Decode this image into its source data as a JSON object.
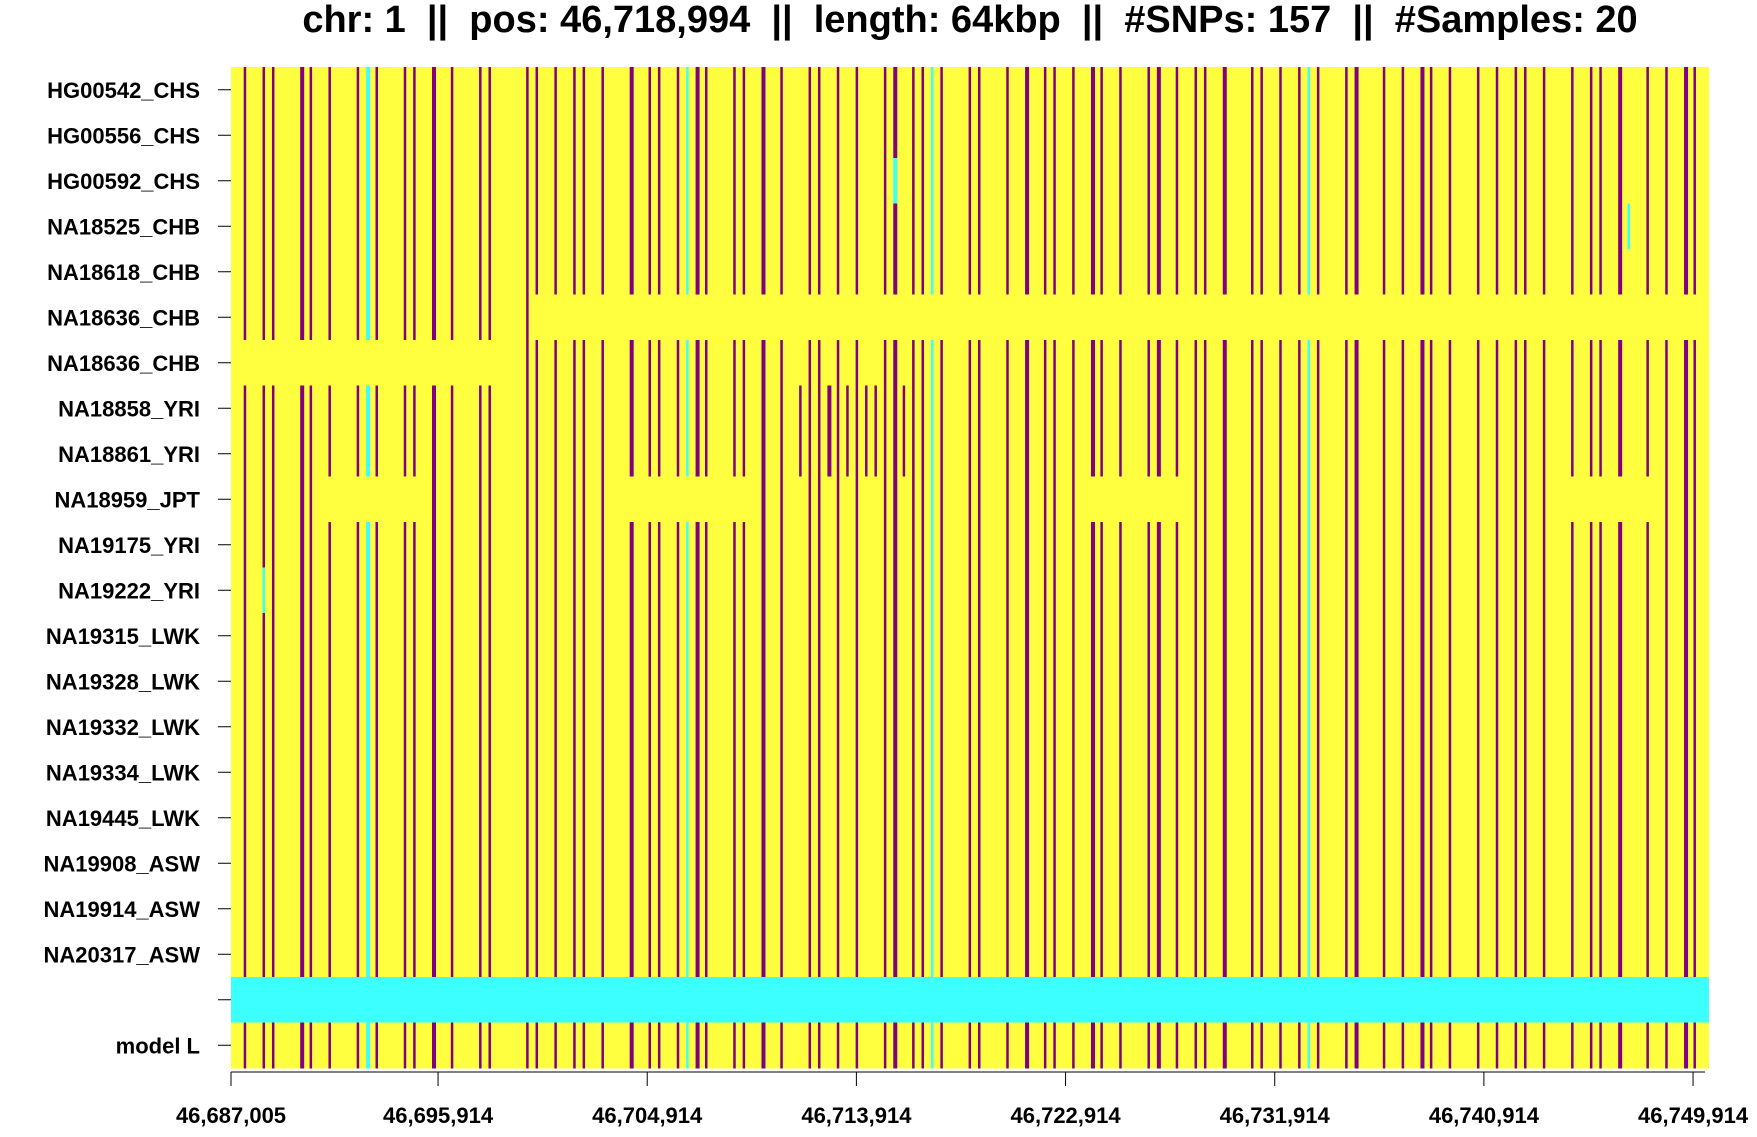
{
  "chart_data": {
    "type": "heatmap",
    "title": "chr: 1  ||  pos: 46,718,994  ||  length: 64kbp  ||  #SNPs: 157  ||  #Samples: 20",
    "xlabel": "",
    "ylabel": "",
    "xlim": [
      46687005,
      46750600
    ],
    "x_ticks": [
      46687005,
      46695914,
      46704914,
      46713914,
      46722914,
      46731914,
      46740914,
      46749914
    ],
    "x_tick_labels": [
      "46,687,005",
      "46,695,914",
      "46,704,914",
      "46,713,914",
      "46,722,914",
      "46,731,914",
      "46,740,914",
      "46,749,914"
    ],
    "colors": {
      "ref": "#FFFF40",
      "alt": "#800080",
      "other": "#3CFFFF"
    },
    "legend": "none",
    "base_pattern": "0101100110100121001101010011000110101101001011012110011010100110101001101121001100101011010110100110101101001101012100110010101101001010110100101101001010110",
    "rows": [
      {
        "label": "HG00542_CHS",
        "overrides": []
      },
      {
        "label": "HG00556_CHS",
        "overrides": []
      },
      {
        "label": "HG00592_CHS",
        "overrides": [
          [
            70,
            70,
            "2"
          ]
        ]
      },
      {
        "label": "NA18525_CHB",
        "overrides": [
          [
            148,
            148,
            "2"
          ]
        ]
      },
      {
        "label": "NA18618_CHB",
        "overrides": []
      },
      {
        "label": "NA18636_CHB",
        "overrides": [
          [
            32,
            156,
            "0"
          ]
        ]
      },
      {
        "label": "NA18636_CHB",
        "overrides": [
          [
            0,
            28,
            "0"
          ]
        ]
      },
      {
        "label": "NA18858_YRI",
        "overrides": [
          [
            60,
            72,
            "1"
          ]
        ]
      },
      {
        "label": "NA18861_YRI",
        "overrides": [
          [
            60,
            72,
            "1"
          ]
        ]
      },
      {
        "label": "NA18959_JPT",
        "overrides": [
          [
            10,
            20,
            "0"
          ],
          [
            40,
            55,
            "0"
          ],
          [
            90,
            100,
            "0"
          ],
          [
            140,
            150,
            "0"
          ]
        ]
      },
      {
        "label": "NA19175_YRI",
        "overrides": []
      },
      {
        "label": "NA19222_YRI",
        "overrides": [
          [
            3,
            3,
            "2"
          ]
        ]
      },
      {
        "label": "NA19315_LWK",
        "overrides": []
      },
      {
        "label": "NA19328_LWK",
        "overrides": []
      },
      {
        "label": "NA19332_LWK",
        "overrides": []
      },
      {
        "label": "NA19334_LWK",
        "overrides": []
      },
      {
        "label": "NA19445_LWK",
        "overrides": []
      },
      {
        "label": "NA19908_ASW",
        "overrides": []
      },
      {
        "label": "NA19914_ASW",
        "overrides": []
      },
      {
        "label": "NA20317_ASW",
        "overrides": []
      },
      {
        "label": "",
        "overrides": [
          [
            0,
            156,
            "band"
          ]
        ]
      },
      {
        "label": "model L",
        "overrides": []
      }
    ]
  }
}
